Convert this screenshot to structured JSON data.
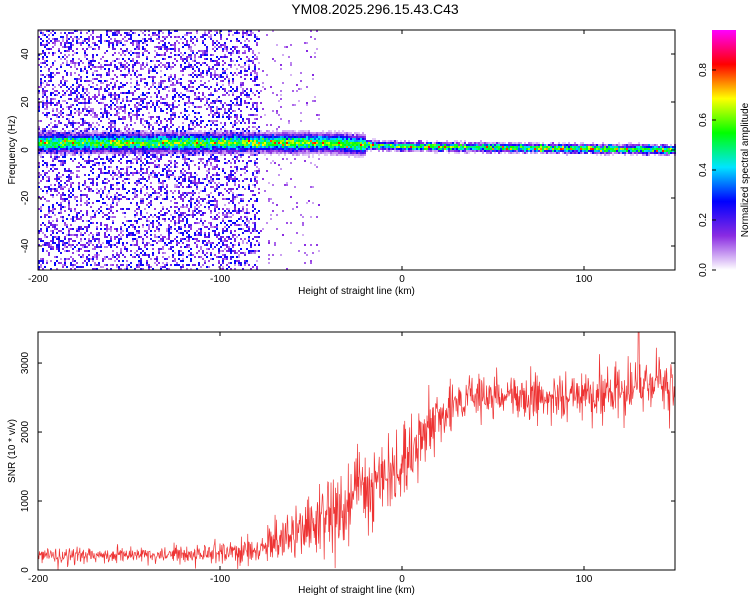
{
  "title": "YM08.2025.296.15.43.C43",
  "chart_data": [
    {
      "type": "heatmap",
      "xlabel": "Height of straight line (km)",
      "ylabel": "Frequency (Hz)",
      "xlim": [
        -200,
        150
      ],
      "ylim": [
        -50,
        50
      ],
      "xticks": [
        -200,
        -100,
        0,
        100
      ],
      "yticks": [
        -40,
        -20,
        0,
        20,
        40
      ],
      "colorbar": {
        "label": "Normalized spectral amplitude",
        "range": [
          0,
          0.96
        ],
        "ticks": [
          0.0,
          0.2,
          0.4,
          0.6,
          0.8
        ],
        "tick_labels": [
          "0.0",
          "0.2",
          "0.4",
          "0.6",
          "0.8"
        ],
        "colors": [
          "#ffffff",
          "#8a2be2",
          "#0000ff",
          "#00e5ff",
          "#00ff00",
          "#ffff00",
          "#ff0000",
          "#ff00ff"
        ]
      },
      "features": {
        "noise_region_x": [
          -200,
          -78
        ],
        "sparse_region_x": [
          -78,
          -45
        ],
        "signal_band_center_hz": [
          {
            "x": -80,
            "f": 3
          },
          {
            "x": -40,
            "f": 3
          },
          {
            "x": -20,
            "f": 2
          },
          {
            "x": 0,
            "f": 1.5
          },
          {
            "x": 50,
            "f": 1
          },
          {
            "x": 100,
            "f": 0.5
          },
          {
            "x": 150,
            "f": 0
          }
        ]
      }
    },
    {
      "type": "line",
      "xlabel": "Height of straight line (km)",
      "ylabel": "SNR (10 * v/v)",
      "xlim": [
        -200,
        150
      ],
      "ylim": [
        0,
        3450
      ],
      "xticks": [
        -200,
        -100,
        0,
        100
      ],
      "yticks": [
        0,
        1000,
        2000,
        3000
      ],
      "color": "#ee3333",
      "trend": [
        {
          "x": -200,
          "mean": 200,
          "spread": 120
        },
        {
          "x": -120,
          "mean": 230,
          "spread": 140
        },
        {
          "x": -80,
          "mean": 300,
          "spread": 250
        },
        {
          "x": -60,
          "mean": 500,
          "spread": 450
        },
        {
          "x": -40,
          "mean": 800,
          "spread": 650
        },
        {
          "x": -20,
          "mean": 1200,
          "spread": 750
        },
        {
          "x": 0,
          "mean": 1500,
          "spread": 600
        },
        {
          "x": 10,
          "mean": 1800,
          "spread": 500
        },
        {
          "x": 20,
          "mean": 2200,
          "spread": 400
        },
        {
          "x": 40,
          "mean": 2550,
          "spread": 350
        },
        {
          "x": 80,
          "mean": 2500,
          "spread": 350
        },
        {
          "x": 120,
          "mean": 2600,
          "spread": 400
        },
        {
          "x": 150,
          "mean": 2700,
          "spread": 450
        }
      ],
      "peak": {
        "x": 130,
        "y": 3450
      }
    }
  ]
}
